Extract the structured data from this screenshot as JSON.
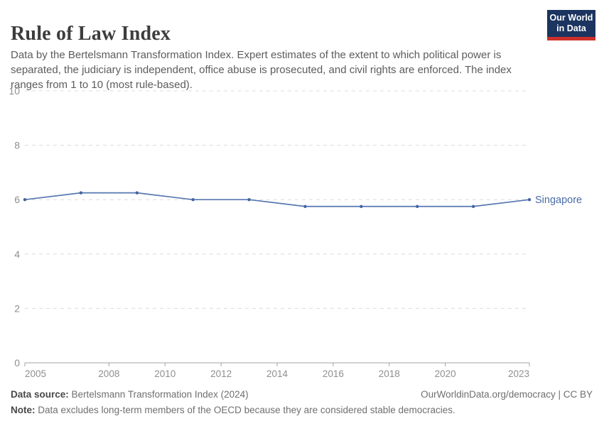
{
  "header": {
    "title": "Rule of Law Index",
    "subtitle": "Data by the Bertelsmann Transformation Index. Expert estimates of the extent to which political power is separated, the judiciary is independent, office abuse is prosecuted, and civil rights are enforced. The index ranges from 1 to 10 (most rule-based).",
    "logo": {
      "line1": "Our World",
      "line2": "in Data"
    }
  },
  "chart_data": {
    "type": "line",
    "title": "Rule of Law Index",
    "series": [
      {
        "name": "Singapore",
        "x": [
          2005,
          2007,
          2009,
          2011,
          2013,
          2015,
          2017,
          2019,
          2021,
          2023
        ],
        "values": [
          6.0,
          6.25,
          6.25,
          6.0,
          6.0,
          5.75,
          5.75,
          5.75,
          5.75,
          6.0
        ]
      }
    ],
    "xlabel": "",
    "ylabel": "",
    "xlim": [
      2005,
      2023
    ],
    "ylim": [
      0,
      10
    ],
    "yticks": [
      0,
      2,
      4,
      6,
      8,
      10
    ],
    "xticks": [
      2005,
      2008,
      2010,
      2012,
      2014,
      2016,
      2018,
      2020,
      2023
    ],
    "grid": "horizontal-dashed",
    "legend": "line-end-label"
  },
  "colors": {
    "line": "#5678b1",
    "marker": "#44639f",
    "series_label": "#4a6ba6",
    "grid": "#dcdcdc",
    "axis": "#a3a3a3",
    "tick_text": "#8f8f8f",
    "logo_bg": "#1b3460",
    "logo_bar": "#cc3029"
  },
  "footer": {
    "source_label": "Data source:",
    "source_value": " Bertelsmann Transformation Index (2024)",
    "attribution": "OurWorldinData.org/democracy | CC BY",
    "note_label": "Note:",
    "note_value": " Data excludes long-term members of the OECD because they are considered stable democracies."
  }
}
